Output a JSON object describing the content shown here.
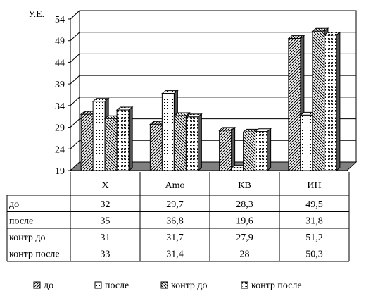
{
  "chart_data": {
    "type": "bar",
    "title": "",
    "xlabel": "",
    "ylabel": "У.Е.",
    "ylim": [
      19,
      54
    ],
    "yticks": [
      19,
      24,
      29,
      34,
      39,
      44,
      49,
      54
    ],
    "grid": true,
    "legend_position": "bottom",
    "categories": [
      "X",
      "Amo",
      "КВ",
      "ИН"
    ],
    "series": [
      {
        "name": "до",
        "pattern": "diagonal-forward",
        "values": [
          32,
          29.7,
          28.3,
          49.5
        ],
        "labels": [
          "32",
          "29,7",
          "28,3",
          "49,5"
        ]
      },
      {
        "name": "после",
        "pattern": "dots",
        "values": [
          35,
          36.8,
          19.6,
          31.8
        ],
        "labels": [
          "35",
          "36,8",
          "19,6",
          "31,8"
        ]
      },
      {
        "name": "контр до",
        "pattern": "diagonal-backward",
        "values": [
          31,
          31.7,
          27.9,
          51.2
        ],
        "labels": [
          "31",
          "31,7",
          "27,9",
          "51,2"
        ]
      },
      {
        "name": "контр после",
        "pattern": "checker",
        "values": [
          33,
          31.4,
          28,
          50.3
        ],
        "labels": [
          "33",
          "31,4",
          "28",
          "50,3"
        ]
      }
    ]
  }
}
